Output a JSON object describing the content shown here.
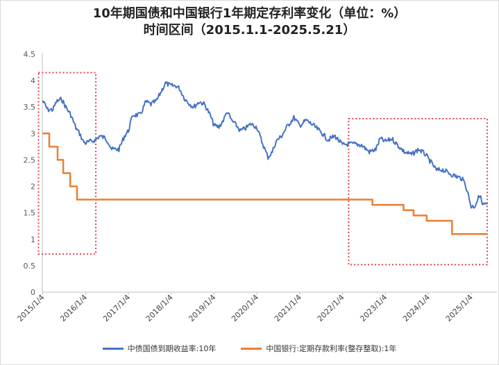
{
  "chart_data": {
    "type": "line",
    "title": "10年期国债和中国银行1年期定存利率变化（单位：%）",
    "subtitle": "时间区间（2015.1.1-2025.5.21）",
    "xlabel": "",
    "ylabel": "",
    "x_ticks": [
      "2015/1/4",
      "2016/1/4",
      "2017/1/4",
      "2018/1/4",
      "2019/1/4",
      "2020/1/4",
      "2021/1/4",
      "2022/1/4",
      "2023/1/4",
      "2024/1/4",
      "2025/1/4"
    ],
    "y_ticks": [
      "0",
      "0.5",
      "1",
      "1.5",
      "2",
      "2.5",
      "3",
      "3.5",
      "4",
      "4.5"
    ],
    "ylim": [
      0,
      4.5
    ],
    "xlim": [
      "2015-01-01",
      "2025-05-21"
    ],
    "grid": false,
    "legend_position": "bottom",
    "series": [
      {
        "name": "中债国债到期收益率:10年",
        "color": "#4472c4",
        "points": [
          [
            "2015-01-04",
            3.62
          ],
          [
            "2015-02-15",
            3.45
          ],
          [
            "2015-04-01",
            3.45
          ],
          [
            "2015-05-01",
            3.6
          ],
          [
            "2015-06-15",
            3.65
          ],
          [
            "2015-07-20",
            3.5
          ],
          [
            "2015-09-01",
            3.35
          ],
          [
            "2015-10-15",
            3.1
          ],
          [
            "2015-11-15",
            3.0
          ],
          [
            "2015-12-15",
            2.85
          ],
          [
            "2016-01-04",
            2.82
          ],
          [
            "2016-02-15",
            2.85
          ],
          [
            "2016-04-01",
            2.88
          ],
          [
            "2016-05-01",
            2.95
          ],
          [
            "2016-06-15",
            2.92
          ],
          [
            "2016-07-15",
            2.85
          ],
          [
            "2016-08-15",
            2.7
          ],
          [
            "2016-10-15",
            2.7
          ],
          [
            "2016-12-01",
            2.95
          ],
          [
            "2017-01-04",
            3.05
          ],
          [
            "2017-02-10",
            3.35
          ],
          [
            "2017-04-15",
            3.35
          ],
          [
            "2017-06-01",
            3.6
          ],
          [
            "2017-07-15",
            3.55
          ],
          [
            "2017-09-01",
            3.62
          ],
          [
            "2017-11-15",
            3.95
          ],
          [
            "2018-01-04",
            3.9
          ],
          [
            "2018-02-15",
            3.9
          ],
          [
            "2018-03-15",
            3.85
          ],
          [
            "2018-05-01",
            3.65
          ],
          [
            "2018-06-15",
            3.55
          ],
          [
            "2018-07-15",
            3.5
          ],
          [
            "2018-09-01",
            3.6
          ],
          [
            "2018-10-15",
            3.55
          ],
          [
            "2018-12-01",
            3.35
          ],
          [
            "2019-01-04",
            3.15
          ],
          [
            "2019-02-15",
            3.12
          ],
          [
            "2019-04-01",
            3.28
          ],
          [
            "2019-04-25",
            3.42
          ],
          [
            "2019-06-01",
            3.25
          ],
          [
            "2019-07-15",
            3.15
          ],
          [
            "2019-08-15",
            3.05
          ],
          [
            "2019-10-01",
            3.1
          ],
          [
            "2019-11-15",
            3.18
          ],
          [
            "2020-01-04",
            3.12
          ],
          [
            "2020-02-15",
            2.85
          ],
          [
            "2020-04-08",
            2.55
          ],
          [
            "2020-05-15",
            2.65
          ],
          [
            "2020-06-15",
            2.85
          ],
          [
            "2020-08-01",
            2.95
          ],
          [
            "2020-09-15",
            3.12
          ],
          [
            "2020-11-15",
            3.3
          ],
          [
            "2021-01-04",
            3.15
          ],
          [
            "2021-03-01",
            3.25
          ],
          [
            "2021-05-01",
            3.15
          ],
          [
            "2021-07-15",
            3.0
          ],
          [
            "2021-09-01",
            2.88
          ],
          [
            "2021-11-01",
            2.95
          ],
          [
            "2022-01-04",
            2.78
          ],
          [
            "2022-02-15",
            2.8
          ],
          [
            "2022-04-15",
            2.8
          ],
          [
            "2022-06-15",
            2.78
          ],
          [
            "2022-08-20",
            2.65
          ],
          [
            "2022-10-15",
            2.7
          ],
          [
            "2022-11-20",
            2.9
          ],
          [
            "2023-01-04",
            2.85
          ],
          [
            "2023-03-01",
            2.9
          ],
          [
            "2023-05-01",
            2.75
          ],
          [
            "2023-06-15",
            2.65
          ],
          [
            "2023-08-15",
            2.6
          ],
          [
            "2023-10-15",
            2.7
          ],
          [
            "2023-12-15",
            2.6
          ],
          [
            "2024-01-04",
            2.52
          ],
          [
            "2024-02-15",
            2.4
          ],
          [
            "2024-03-15",
            2.3
          ],
          [
            "2024-05-01",
            2.32
          ],
          [
            "2024-07-01",
            2.25
          ],
          [
            "2024-08-15",
            2.2
          ],
          [
            "2024-10-15",
            2.15
          ],
          [
            "2024-11-15",
            2.05
          ],
          [
            "2024-12-15",
            1.8
          ],
          [
            "2025-01-04",
            1.62
          ],
          [
            "2025-02-01",
            1.62
          ],
          [
            "2025-03-01",
            1.75
          ],
          [
            "2025-03-20",
            1.85
          ],
          [
            "2025-04-10",
            1.65
          ],
          [
            "2025-05-21",
            1.66
          ]
        ]
      },
      {
        "name": "中国银行:定期存款利率(整存整取):1年",
        "color": "#ed7d31",
        "points": [
          [
            "2015-01-04",
            3.0
          ],
          [
            "2015-03-01",
            3.0
          ],
          [
            "2015-03-01",
            2.75
          ],
          [
            "2015-05-11",
            2.75
          ],
          [
            "2015-05-11",
            2.5
          ],
          [
            "2015-06-28",
            2.5
          ],
          [
            "2015-06-28",
            2.25
          ],
          [
            "2015-08-26",
            2.25
          ],
          [
            "2015-08-26",
            2.0
          ],
          [
            "2015-10-24",
            2.0
          ],
          [
            "2015-10-24",
            1.75
          ],
          [
            "2022-09-15",
            1.75
          ],
          [
            "2022-09-15",
            1.65
          ],
          [
            "2023-06-08",
            1.65
          ],
          [
            "2023-06-08",
            1.55
          ],
          [
            "2023-09-01",
            1.55
          ],
          [
            "2023-09-01",
            1.45
          ],
          [
            "2023-12-22",
            1.45
          ],
          [
            "2023-12-22",
            1.35
          ],
          [
            "2024-07-25",
            1.35
          ],
          [
            "2024-07-25",
            1.1
          ],
          [
            "2025-05-21",
            1.1
          ]
        ]
      }
    ],
    "annotations": [
      {
        "type": "dashed-box",
        "color": "#e04050",
        "x_from": "2015-01-04",
        "x_to": "2016-04-01",
        "y_from": 0.72,
        "y_to": 4.15
      },
      {
        "type": "dashed-box",
        "color": "#e04050",
        "x_from": "2022-04-01",
        "x_to": "2025-05-21",
        "y_from": 0.52,
        "y_to": 3.28
      }
    ]
  }
}
